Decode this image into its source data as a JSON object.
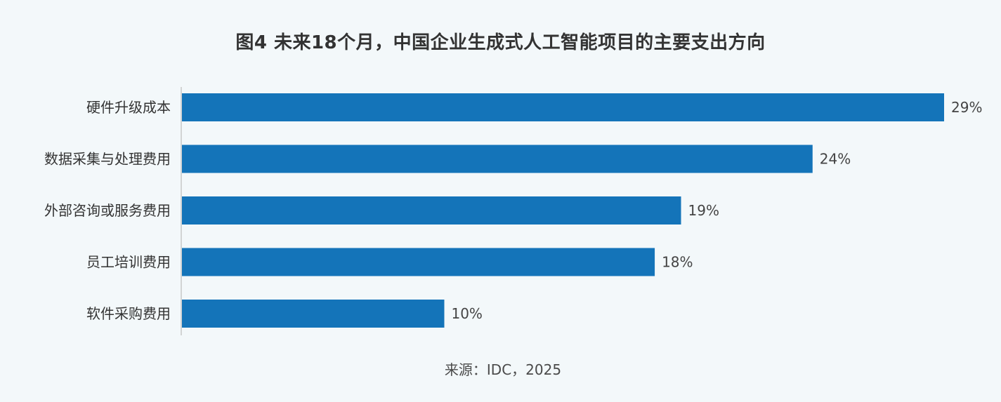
{
  "chart_data": {
    "type": "bar",
    "orientation": "horizontal",
    "title": "图4 未来18个月，中国企业生成式人工智能项目的主要支出方向",
    "categories": [
      "硬件升级成本",
      "数据采集与处理费用",
      "外部咨询或服务费用",
      "员工培训费用",
      "软件采购费用"
    ],
    "values": [
      29,
      24,
      19,
      18,
      10
    ],
    "value_labels": [
      "29%",
      "24%",
      "19%",
      "18%",
      "10%"
    ],
    "unit": "%",
    "xlim": [
      0,
      29
    ],
    "bar_color": "#1474b9",
    "source": "来源：IDC，2025"
  }
}
